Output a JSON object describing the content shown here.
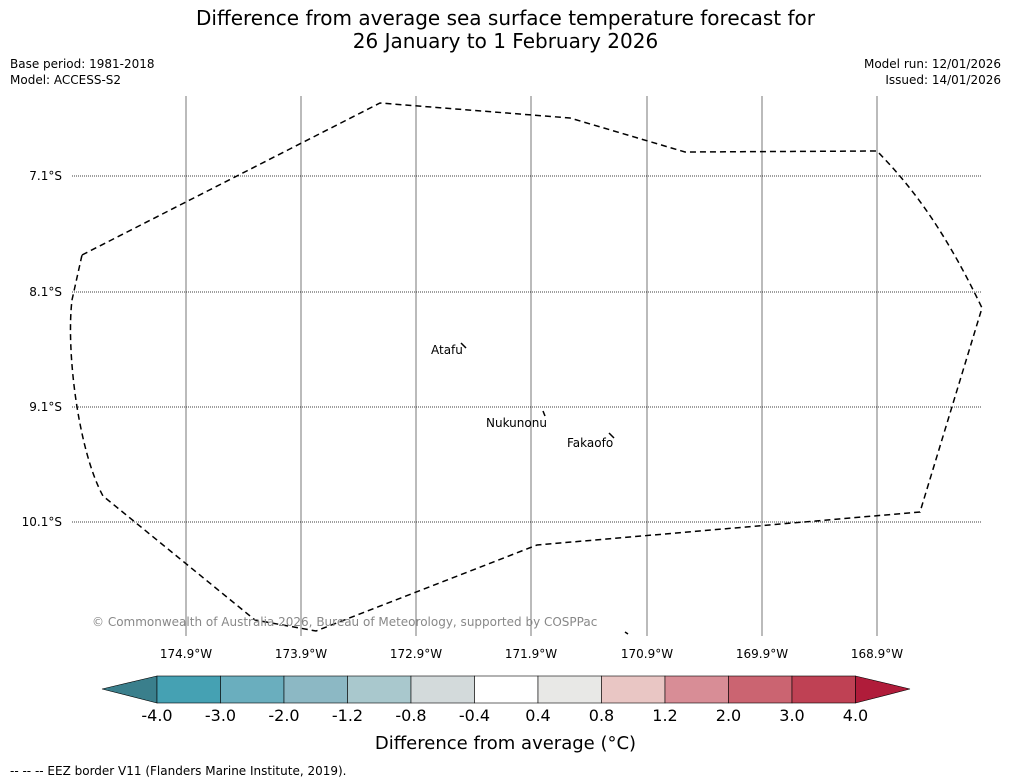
{
  "title": {
    "line1": "Difference from average sea surface temperature forecast for",
    "line2": "26 January to 1 February 2026"
  },
  "meta": {
    "base_period": "Base period: 1981-2018",
    "model": "Model: ACCESS-S2",
    "model_run": "Model run: 12/01/2026",
    "issued": "Issued: 14/01/2026"
  },
  "map": {
    "lat_labels": [
      "7.1°S",
      "8.1°S",
      "9.1°S",
      "10.1°S"
    ],
    "lon_labels": [
      "174.9°W",
      "173.9°W",
      "172.9°W",
      "171.9°W",
      "170.9°W",
      "169.9°W",
      "168.9°W"
    ],
    "places": {
      "atafu": "Atafu",
      "nukunonu": "Nukunonu",
      "fakaofo": "Fakaofo"
    },
    "copyright": "© Commonwealth of Australia 2026, Bureau of Meteorology, supported by COSPPac",
    "colors": {
      "eez_line": "#000000",
      "meridian": "#777777",
      "parallel": "#000000",
      "copyright": "#888888"
    }
  },
  "colorbar": {
    "ticks": [
      "-4.0",
      "-3.0",
      "-2.0",
      "-1.2",
      "-0.8",
      "-0.4",
      "0.4",
      "0.8",
      "1.2",
      "2.0",
      "3.0",
      "4.0"
    ],
    "colors": [
      "#3a7f8c",
      "#45a1b3",
      "#6aaebe",
      "#8cb8c4",
      "#a9c8cd",
      "#d3dadb",
      "#ffffff",
      "#e8e8e6",
      "#e9c6c4",
      "#d88d96",
      "#cb6471",
      "#bf4154",
      "#b01c3a"
    ],
    "label": "Difference from average (°C)"
  },
  "footer": {
    "legend": "--  --  -- EEZ border V11 (Flanders Marine Institute, 2019)."
  }
}
